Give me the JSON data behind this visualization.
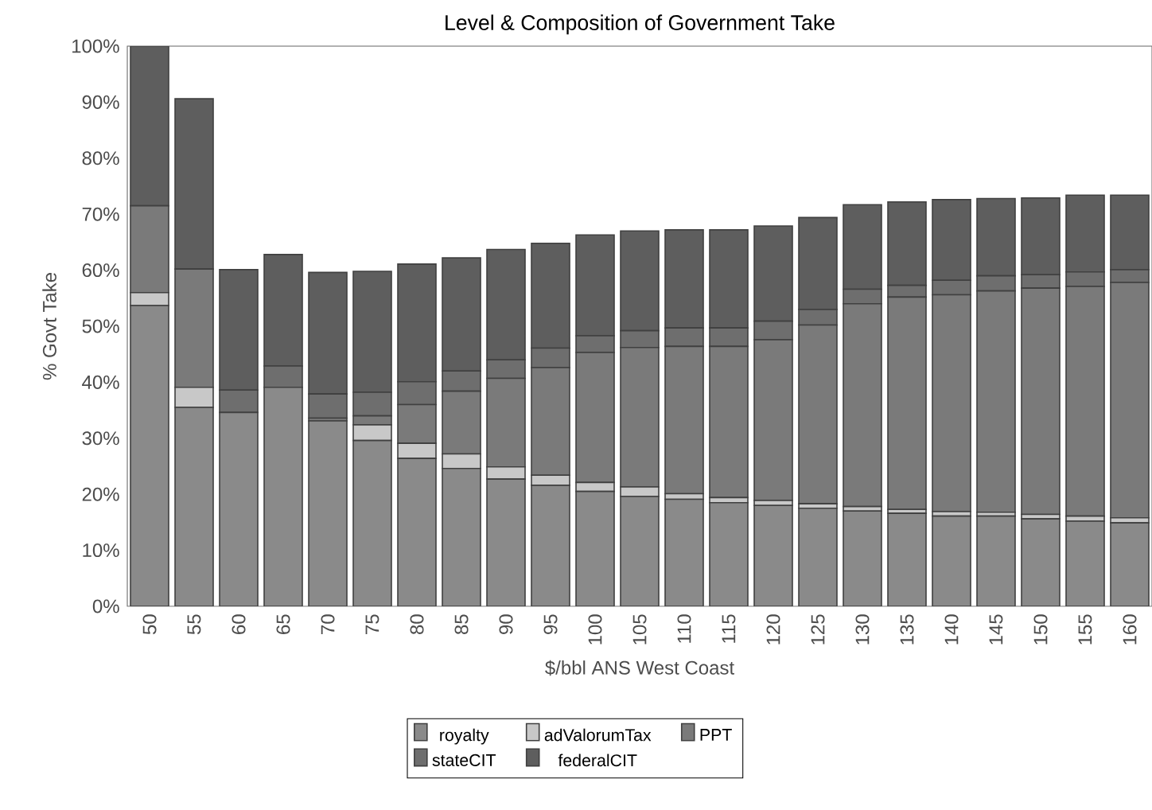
{
  "chart_data": {
    "type": "bar",
    "stacked": true,
    "title": "Level & Composition of Government Take",
    "xlabel": "$/bbl ANS West Coast",
    "ylabel": "% Govt Take",
    "categories": [
      "50",
      "55",
      "60",
      "65",
      "70",
      "75",
      "80",
      "85",
      "90",
      "95",
      "100",
      "105",
      "110",
      "115",
      "120",
      "125",
      "130",
      "135",
      "140",
      "145",
      "150",
      "155",
      "160"
    ],
    "series": [
      {
        "name": "royalty",
        "color": "#8a8a8a",
        "values": [
          53.7,
          35.5,
          34.6,
          39.1,
          33.1,
          29.6,
          26.4,
          24.6,
          22.7,
          21.6,
          20.5,
          19.6,
          19.1,
          18.5,
          18.0,
          17.5,
          17.0,
          16.6,
          16.1,
          16.1,
          15.6,
          15.2,
          14.9
        ]
      },
      {
        "name": "adValorumTax",
        "color": "#c8c8c8",
        "values": [
          2.3,
          3.6,
          0,
          0,
          0,
          2.8,
          2.7,
          2.6,
          2.2,
          1.8,
          1.6,
          1.7,
          1.0,
          0.9,
          0.9,
          0.8,
          0.8,
          0.7,
          0.8,
          0.7,
          0.8,
          0.9,
          0.9
        ]
      },
      {
        "name": "PPT",
        "color": "#7a7a7a",
        "values": [
          15.5,
          21.1,
          0,
          0,
          0.5,
          1.6,
          6.9,
          11.2,
          15.8,
          19.2,
          23.2,
          24.9,
          26.3,
          27.0,
          28.7,
          31.9,
          36.2,
          37.9,
          38.7,
          39.5,
          40.4,
          41.0,
          42.0
        ]
      },
      {
        "name": "stateCIT",
        "color": "#6e6e6e",
        "values": [
          0,
          0,
          4.0,
          3.8,
          4.3,
          4.2,
          4.1,
          3.6,
          3.3,
          3.5,
          3.0,
          3.0,
          3.3,
          3.3,
          3.3,
          2.8,
          2.6,
          2.1,
          2.6,
          2.7,
          2.4,
          2.6,
          2.3
        ]
      },
      {
        "name": "federalCIT",
        "color": "#5e5e5e",
        "values": [
          28.5,
          30.4,
          21.5,
          19.9,
          21.7,
          21.6,
          21.0,
          20.2,
          19.7,
          18.7,
          18.0,
          17.8,
          17.5,
          17.5,
          17.0,
          16.4,
          15.1,
          14.9,
          14.4,
          13.8,
          13.7,
          13.7,
          13.3
        ]
      }
    ],
    "ylim": [
      0,
      100
    ],
    "yticks": [
      {
        "value": 0,
        "label": "0%"
      },
      {
        "value": 10,
        "label": "10%"
      },
      {
        "value": 20,
        "label": "20%"
      },
      {
        "value": 30,
        "label": "30%"
      },
      {
        "value": 40,
        "label": "40%"
      },
      {
        "value": 50,
        "label": "50%"
      },
      {
        "value": 60,
        "label": "60%"
      },
      {
        "value": 70,
        "label": "70%"
      },
      {
        "value": 80,
        "label": "80%"
      },
      {
        "value": 90,
        "label": "90%"
      },
      {
        "value": 100,
        "label": "100%"
      }
    ],
    "legend": "bottom"
  }
}
